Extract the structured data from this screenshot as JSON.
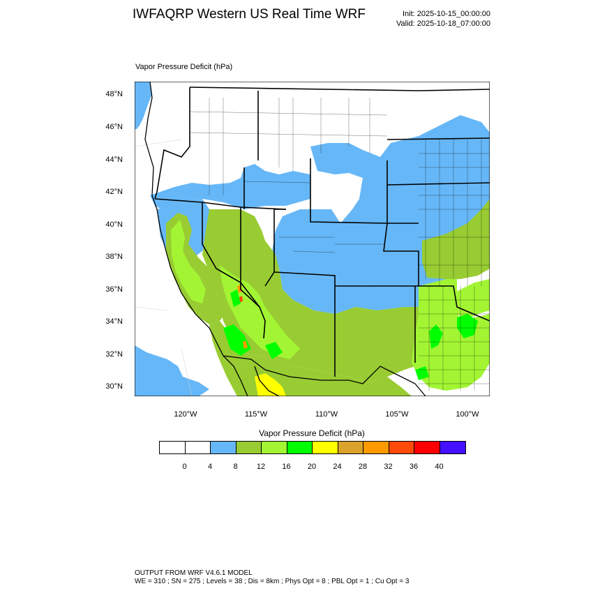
{
  "header": {
    "title": "IWFAQRP Western US Real Time WRF",
    "init": "Init: 2025-10-15_00:00:00",
    "valid": "Valid: 2025-10-18_07:00:00"
  },
  "map": {
    "subtitle": "Vapor Pressure Deficit   (hPa)",
    "lat_labels": [
      "48°N",
      "46°N",
      "44°N",
      "42°N",
      "40°N",
      "38°N",
      "36°N",
      "34°N",
      "32°N",
      "30°N"
    ],
    "lon_labels": [
      "120°W",
      "115°W",
      "110°W",
      "105°W",
      "100°W"
    ],
    "colors": {
      "none": "#ffffff",
      "low": "#66b7f7",
      "mid1": "#99cc33",
      "mid2": "#a3f534",
      "high": "#00ff00",
      "yellow": "#ffff00",
      "orange": "#ff9900",
      "red": "#ff3300"
    }
  },
  "legend": {
    "title": "Vapor Pressure Deficit  (hPa)",
    "colors": [
      "#ffffff",
      "#ffffff",
      "#66b7f7",
      "#99cc33",
      "#a3f534",
      "#00ff00",
      "#ffff00",
      "#d9a32b",
      "#ff9900",
      "#ff4a0a",
      "#ff0000",
      "#4410ff"
    ],
    "labels": [
      "0",
      "4",
      "8",
      "12",
      "16",
      "20",
      "24",
      "28",
      "32",
      "36",
      "40"
    ]
  },
  "footer": {
    "line1": "OUTPUT FROM WRF V4.6.1 MODEL",
    "line2": "WE = 310 ; SN = 275 ; Levels = 38 ; Dis = 8km ; Phys Opt = 8 ; PBL Opt = 1 ; Cu Opt = 3"
  }
}
